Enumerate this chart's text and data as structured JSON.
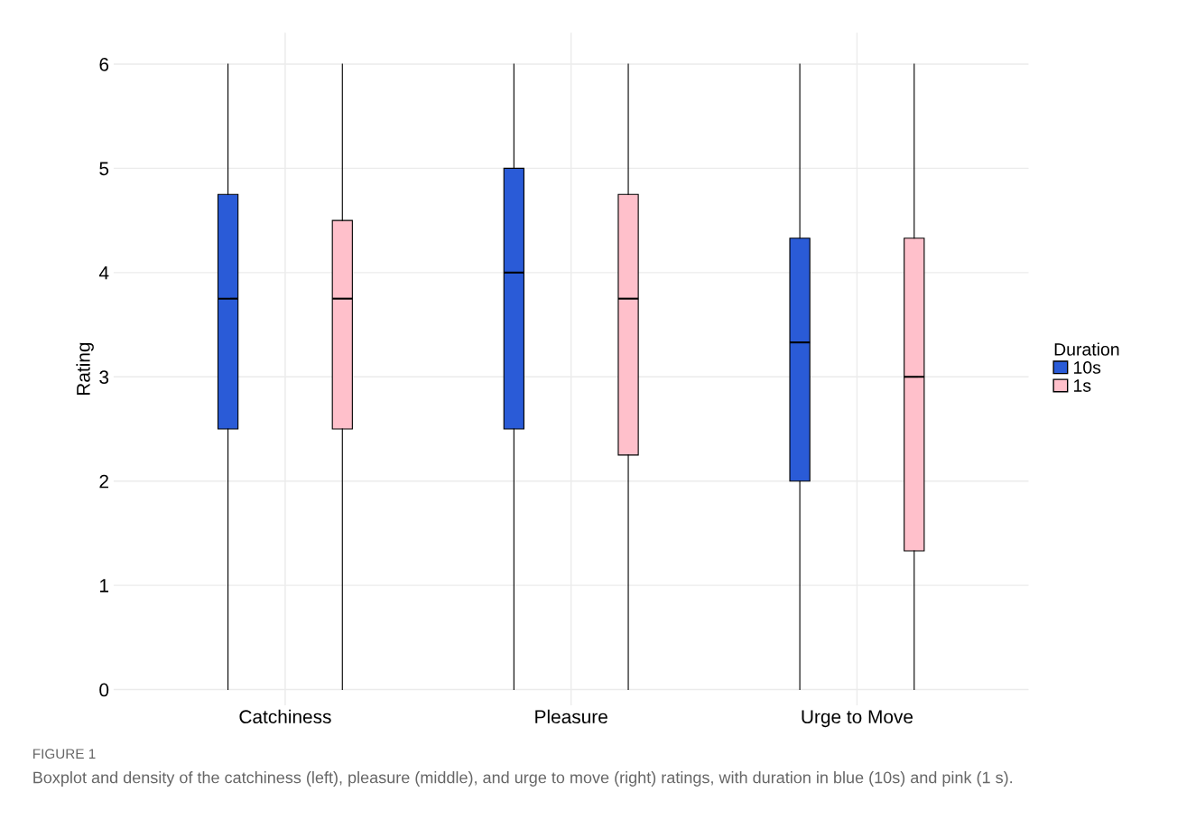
{
  "chart_data": {
    "type": "box",
    "ylabel": "Rating",
    "legend_title": "Duration",
    "legend": "right",
    "grid": true,
    "categories": [
      "Catchiness",
      "Pleasure",
      "Urge to Move"
    ],
    "ylim": [
      -0.15,
      6.3
    ],
    "yticks": [
      0,
      1,
      2,
      3,
      4,
      5,
      6
    ],
    "series": [
      {
        "name": "10s",
        "color": "#2a5bd7",
        "boxes": [
          {
            "low": 0,
            "q1": 2.5,
            "median": 3.75,
            "q3": 4.75,
            "high": 6
          },
          {
            "low": 0,
            "q1": 2.5,
            "median": 4,
            "q3": 5,
            "high": 6
          },
          {
            "low": 0,
            "q1": 2,
            "median": 3.33,
            "q3": 4.33,
            "high": 6
          }
        ]
      },
      {
        "name": "1s",
        "color": "#ffc0cb",
        "boxes": [
          {
            "low": 0,
            "q1": 2.5,
            "median": 3.75,
            "q3": 4.5,
            "high": 6
          },
          {
            "low": 0,
            "q1": 2.25,
            "median": 3.75,
            "q3": 4.75,
            "high": 6
          },
          {
            "low": 0,
            "q1": 1.33,
            "median": 3,
            "q3": 4.33,
            "high": 6
          }
        ]
      }
    ],
    "annotations": [
      "FIGURE 1",
      "Boxplot and density of the catchiness (left), pleasure (middle), and urge to move (right) ratings, with duration in blue (10s) and pink (1 s)."
    ]
  }
}
